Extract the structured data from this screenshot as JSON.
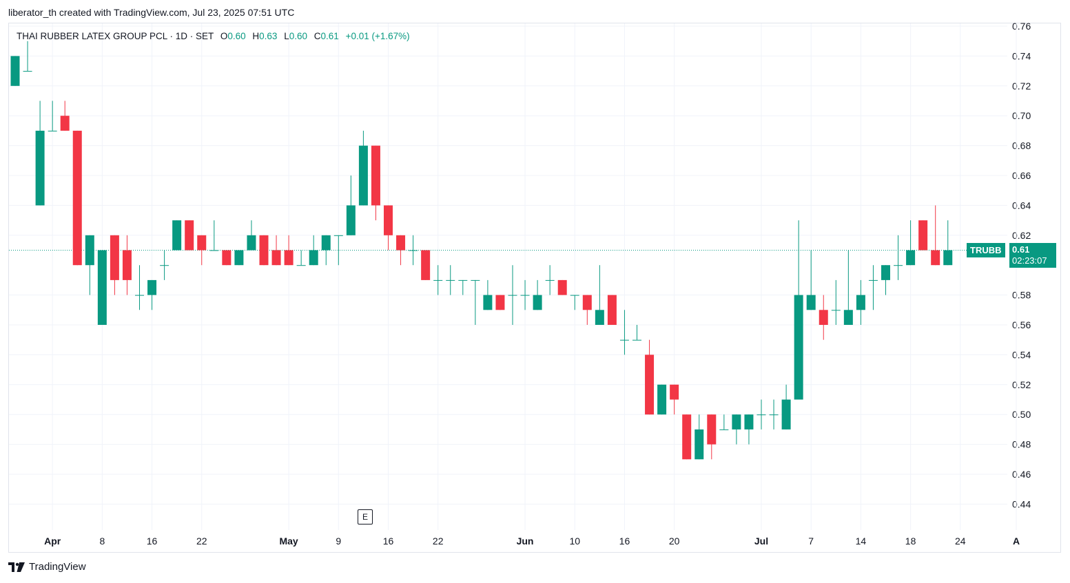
{
  "header": {
    "credit": "liberator_th created with TradingView.com, Jul 23, 2025 07:51 UTC"
  },
  "legend": {
    "title": "THAI RUBBER LATEX GROUP PCL · 1D · SET",
    "o_label": "O",
    "o_value": "0.60",
    "h_label": "H",
    "h_value": "0.63",
    "l_label": "L",
    "l_value": "0.60",
    "c_label": "C",
    "c_value": "0.61",
    "change": "+0.01 (+1.67%)"
  },
  "price_tag": {
    "symbol": "TRUBB",
    "price": "0.61",
    "countdown": "02:23:07"
  },
  "earnings_badge": "E",
  "footer": {
    "brand": "TradingView"
  },
  "colors": {
    "up": "#089981",
    "down": "#F23645",
    "grid": "#F0F3FA",
    "text": "#131722"
  },
  "chart_data": {
    "type": "candlestick",
    "ylim": [
      0.43,
      0.76
    ],
    "y_ticks": [
      "0.76",
      "0.74",
      "0.72",
      "0.70",
      "0.68",
      "0.66",
      "0.64",
      "0.62",
      "0.58",
      "0.56",
      "0.54",
      "0.52",
      "0.50",
      "0.48",
      "0.46",
      "0.44"
    ],
    "x_ticks": [
      {
        "label": "Apr",
        "bold": true,
        "bar": 3
      },
      {
        "label": "8",
        "bold": false,
        "bar": 7
      },
      {
        "label": "16",
        "bold": false,
        "bar": 11
      },
      {
        "label": "22",
        "bold": false,
        "bar": 15
      },
      {
        "label": "May",
        "bold": true,
        "bar": 22
      },
      {
        "label": "9",
        "bold": false,
        "bar": 26
      },
      {
        "label": "16",
        "bold": false,
        "bar": 30
      },
      {
        "label": "22",
        "bold": false,
        "bar": 34
      },
      {
        "label": "Jun",
        "bold": true,
        "bar": 41
      },
      {
        "label": "10",
        "bold": false,
        "bar": 45
      },
      {
        "label": "16",
        "bold": false,
        "bar": 49
      },
      {
        "label": "20",
        "bold": false,
        "bar": 53
      },
      {
        "label": "Jul",
        "bold": true,
        "bar": 60
      },
      {
        "label": "7",
        "bold": false,
        "bar": 64
      },
      {
        "label": "14",
        "bold": false,
        "bar": 68
      },
      {
        "label": "18",
        "bold": false,
        "bar": 72
      },
      {
        "label": "24",
        "bold": false,
        "bar": 76
      },
      {
        "label": "A",
        "bold": true,
        "bar": 80.5
      }
    ],
    "last_price_line": 0.61,
    "candles": [
      {
        "o": 0.72,
        "h": 0.74,
        "l": 0.72,
        "c": 0.74
      },
      {
        "o": 0.73,
        "h": 0.75,
        "l": 0.73,
        "c": 0.73
      },
      {
        "o": 0.64,
        "h": 0.71,
        "l": 0.64,
        "c": 0.69
      },
      {
        "o": 0.69,
        "h": 0.71,
        "l": 0.69,
        "c": 0.69
      },
      {
        "o": 0.7,
        "h": 0.71,
        "l": 0.69,
        "c": 0.69
      },
      {
        "o": 0.69,
        "h": 0.69,
        "l": 0.6,
        "c": 0.6
      },
      {
        "o": 0.6,
        "h": 0.62,
        "l": 0.58,
        "c": 0.62
      },
      {
        "o": 0.56,
        "h": 0.61,
        "l": 0.56,
        "c": 0.61
      },
      {
        "o": 0.62,
        "h": 0.62,
        "l": 0.58,
        "c": 0.59
      },
      {
        "o": 0.61,
        "h": 0.62,
        "l": 0.58,
        "c": 0.59
      },
      {
        "o": 0.58,
        "h": 0.6,
        "l": 0.57,
        "c": 0.58
      },
      {
        "o": 0.58,
        "h": 0.59,
        "l": 0.57,
        "c": 0.59
      },
      {
        "o": 0.6,
        "h": 0.61,
        "l": 0.59,
        "c": 0.6
      },
      {
        "o": 0.61,
        "h": 0.63,
        "l": 0.61,
        "c": 0.63
      },
      {
        "o": 0.63,
        "h": 0.63,
        "l": 0.61,
        "c": 0.61
      },
      {
        "o": 0.62,
        "h": 0.62,
        "l": 0.6,
        "c": 0.61
      },
      {
        "o": 0.61,
        "h": 0.63,
        "l": 0.61,
        "c": 0.61
      },
      {
        "o": 0.61,
        "h": 0.61,
        "l": 0.6,
        "c": 0.6
      },
      {
        "o": 0.6,
        "h": 0.61,
        "l": 0.6,
        "c": 0.61
      },
      {
        "o": 0.61,
        "h": 0.63,
        "l": 0.61,
        "c": 0.62
      },
      {
        "o": 0.62,
        "h": 0.62,
        "l": 0.6,
        "c": 0.6
      },
      {
        "o": 0.61,
        "h": 0.62,
        "l": 0.6,
        "c": 0.6
      },
      {
        "o": 0.61,
        "h": 0.62,
        "l": 0.6,
        "c": 0.6
      },
      {
        "o": 0.6,
        "h": 0.61,
        "l": 0.6,
        "c": 0.6
      },
      {
        "o": 0.6,
        "h": 0.62,
        "l": 0.6,
        "c": 0.61
      },
      {
        "o": 0.61,
        "h": 0.62,
        "l": 0.6,
        "c": 0.62
      },
      {
        "o": 0.62,
        "h": 0.62,
        "l": 0.6,
        "c": 0.62
      },
      {
        "o": 0.62,
        "h": 0.66,
        "l": 0.62,
        "c": 0.64
      },
      {
        "o": 0.64,
        "h": 0.69,
        "l": 0.64,
        "c": 0.68
      },
      {
        "o": 0.68,
        "h": 0.68,
        "l": 0.63,
        "c": 0.64
      },
      {
        "o": 0.64,
        "h": 0.64,
        "l": 0.61,
        "c": 0.62
      },
      {
        "o": 0.62,
        "h": 0.62,
        "l": 0.6,
        "c": 0.61
      },
      {
        "o": 0.61,
        "h": 0.62,
        "l": 0.6,
        "c": 0.61
      },
      {
        "o": 0.61,
        "h": 0.61,
        "l": 0.59,
        "c": 0.59
      },
      {
        "o": 0.59,
        "h": 0.6,
        "l": 0.58,
        "c": 0.59
      },
      {
        "o": 0.59,
        "h": 0.6,
        "l": 0.58,
        "c": 0.59
      },
      {
        "o": 0.59,
        "h": 0.59,
        "l": 0.58,
        "c": 0.59
      },
      {
        "o": 0.59,
        "h": 0.59,
        "l": 0.56,
        "c": 0.59
      },
      {
        "o": 0.57,
        "h": 0.59,
        "l": 0.57,
        "c": 0.58
      },
      {
        "o": 0.58,
        "h": 0.58,
        "l": 0.57,
        "c": 0.57
      },
      {
        "o": 0.58,
        "h": 0.6,
        "l": 0.56,
        "c": 0.58
      },
      {
        "o": 0.58,
        "h": 0.59,
        "l": 0.57,
        "c": 0.58
      },
      {
        "o": 0.57,
        "h": 0.59,
        "l": 0.57,
        "c": 0.58
      },
      {
        "o": 0.59,
        "h": 0.6,
        "l": 0.58,
        "c": 0.59
      },
      {
        "o": 0.59,
        "h": 0.59,
        "l": 0.58,
        "c": 0.58
      },
      {
        "o": 0.58,
        "h": 0.58,
        "l": 0.57,
        "c": 0.58
      },
      {
        "o": 0.58,
        "h": 0.58,
        "l": 0.56,
        "c": 0.57
      },
      {
        "o": 0.56,
        "h": 0.6,
        "l": 0.56,
        "c": 0.57
      },
      {
        "o": 0.58,
        "h": 0.58,
        "l": 0.56,
        "c": 0.56
      },
      {
        "o": 0.55,
        "h": 0.57,
        "l": 0.54,
        "c": 0.55
      },
      {
        "o": 0.55,
        "h": 0.56,
        "l": 0.55,
        "c": 0.55
      },
      {
        "o": 0.54,
        "h": 0.55,
        "l": 0.5,
        "c": 0.5
      },
      {
        "o": 0.5,
        "h": 0.52,
        "l": 0.5,
        "c": 0.52
      },
      {
        "o": 0.52,
        "h": 0.52,
        "l": 0.5,
        "c": 0.51
      },
      {
        "o": 0.5,
        "h": 0.5,
        "l": 0.47,
        "c": 0.47
      },
      {
        "o": 0.47,
        "h": 0.5,
        "l": 0.47,
        "c": 0.49
      },
      {
        "o": 0.5,
        "h": 0.5,
        "l": 0.47,
        "c": 0.48
      },
      {
        "o": 0.49,
        "h": 0.5,
        "l": 0.49,
        "c": 0.49
      },
      {
        "o": 0.49,
        "h": 0.5,
        "l": 0.48,
        "c": 0.5
      },
      {
        "o": 0.49,
        "h": 0.5,
        "l": 0.48,
        "c": 0.5
      },
      {
        "o": 0.5,
        "h": 0.51,
        "l": 0.49,
        "c": 0.5
      },
      {
        "o": 0.5,
        "h": 0.51,
        "l": 0.49,
        "c": 0.5
      },
      {
        "o": 0.49,
        "h": 0.52,
        "l": 0.49,
        "c": 0.51
      },
      {
        "o": 0.51,
        "h": 0.63,
        "l": 0.51,
        "c": 0.58
      },
      {
        "o": 0.57,
        "h": 0.61,
        "l": 0.57,
        "c": 0.58
      },
      {
        "o": 0.57,
        "h": 0.58,
        "l": 0.55,
        "c": 0.56
      },
      {
        "o": 0.57,
        "h": 0.59,
        "l": 0.56,
        "c": 0.57
      },
      {
        "o": 0.56,
        "h": 0.61,
        "l": 0.56,
        "c": 0.57
      },
      {
        "o": 0.57,
        "h": 0.59,
        "l": 0.56,
        "c": 0.58
      },
      {
        "o": 0.59,
        "h": 0.6,
        "l": 0.57,
        "c": 0.59
      },
      {
        "o": 0.59,
        "h": 0.6,
        "l": 0.58,
        "c": 0.6
      },
      {
        "o": 0.6,
        "h": 0.62,
        "l": 0.59,
        "c": 0.6
      },
      {
        "o": 0.6,
        "h": 0.63,
        "l": 0.6,
        "c": 0.61
      },
      {
        "o": 0.63,
        "h": 0.63,
        "l": 0.61,
        "c": 0.61
      },
      {
        "o": 0.61,
        "h": 0.64,
        "l": 0.6,
        "c": 0.6
      },
      {
        "o": 0.6,
        "h": 0.63,
        "l": 0.6,
        "c": 0.61
      }
    ]
  }
}
